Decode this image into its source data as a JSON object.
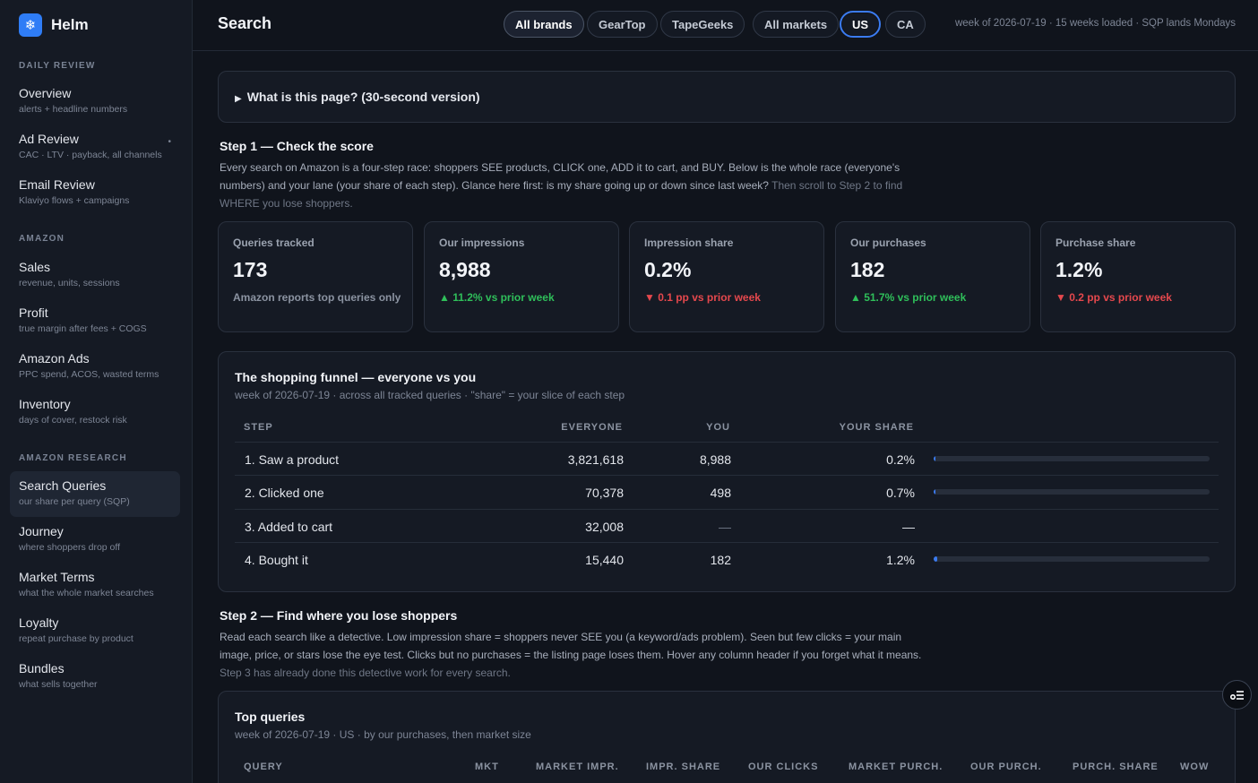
{
  "brand": {
    "name": "Helm",
    "logo_icon": "snowflake-icon"
  },
  "sidebar": {
    "sections": [
      {
        "label": "Daily Review",
        "items": [
          {
            "title": "Overview",
            "sub": "alerts + headline numbers"
          },
          {
            "title": "Ad Review",
            "sub": "CAC · LTV · payback, all channels"
          },
          {
            "title": "Email Review",
            "sub": "Klaviyo flows + campaigns"
          }
        ]
      },
      {
        "label": "Amazon",
        "items": [
          {
            "title": "Sales",
            "sub": "revenue, units, sessions"
          },
          {
            "title": "Profit",
            "sub": "true margin after fees + COGS"
          },
          {
            "title": "Amazon Ads",
            "sub": "PPC spend, ACOS, wasted terms"
          },
          {
            "title": "Inventory",
            "sub": "days of cover, restock risk"
          }
        ]
      },
      {
        "label": "Amazon Research",
        "items": [
          {
            "title": "Search Queries",
            "sub": "our share per query (SQP)"
          },
          {
            "title": "Journey",
            "sub": "where shoppers drop off"
          },
          {
            "title": "Market Terms",
            "sub": "what the whole market searches"
          },
          {
            "title": "Loyalty",
            "sub": "repeat purchase by product"
          },
          {
            "title": "Bundles",
            "sub": "what sells together"
          }
        ]
      }
    ],
    "ad_review_marker": "•"
  },
  "header": {
    "title": "Search",
    "filters": [
      "All brands",
      "GearTop",
      "TapeGeeks",
      "All markets",
      "US",
      "CA"
    ],
    "meta": "week of 2026-07-19 · 15 weeks loaded · SQP lands Mondays"
  },
  "explain": {
    "label": "What is this page? (30-second version)",
    "toggle_glyph": "▶"
  },
  "step1": {
    "title": "Step 1 — Check the score",
    "desc": "Every search on Amazon is a four-step race: shoppers SEE products, CLICK one, ADD it to cart, and BUY. Below is the whole race (everyone's numbers) and your lane (your share of each step). Glance here first: is my share going up or down since last week?",
    "desc_muted": "Then scroll to Step 2 to find WHERE you lose shoppers."
  },
  "kpis": [
    {
      "label": "Queries tracked",
      "value": "173",
      "delta": "Amazon reports top queries only",
      "tone": "note"
    },
    {
      "label": "Our impressions",
      "value": "8,988",
      "delta": "▲ 11.2% vs prior week",
      "tone": "up"
    },
    {
      "label": "Impression share",
      "value": "0.2%",
      "delta": "▼ 0.1 pp vs prior week",
      "tone": "down"
    },
    {
      "label": "Our purchases",
      "value": "182",
      "delta": "▲ 51.7% vs prior week",
      "tone": "up"
    },
    {
      "label": "Purchase share",
      "value": "1.2%",
      "delta": "▼ 0.2 pp vs prior week",
      "tone": "down"
    }
  ],
  "funnel": {
    "title": "The shopping funnel — everyone vs you",
    "subtitle": "week of 2026-07-19 · across all tracked queries · \"share\" = your slice of each step",
    "columns": [
      "Step",
      "Everyone",
      "You",
      "Your share"
    ],
    "rows": [
      {
        "step": "1. Saw a product",
        "everyone": "3,821,618",
        "you": "8,988",
        "share": "0.2%",
        "share_value": 0.2
      },
      {
        "step": "2. Clicked one",
        "everyone": "70,378",
        "you": "498",
        "share": "0.7%",
        "share_value": 0.7
      },
      {
        "step": "3. Added to cart",
        "everyone": "32,008",
        "you": "—",
        "share": "—",
        "share_value": null
      },
      {
        "step": "4. Bought it",
        "everyone": "15,440",
        "you": "182",
        "share": "1.2%",
        "share_value": 1.2
      }
    ]
  },
  "step2": {
    "title": "Step 2 — Find where you lose shoppers",
    "desc": "Read each search like a detective. Low impression share = shoppers never SEE you (a keyword/ads problem). Seen but few clicks = your main image, price, or stars lose the eye test. Clicks but no purchases = the listing page loses them. Hover any column header if you forget what it means.",
    "desc_muted": "Step 3 has already done this detective work for every search."
  },
  "queries": {
    "title": "Top queries",
    "subtitle": "week of 2026-07-19 · US · by our purchases, then market size",
    "columns": [
      "Query",
      "Mkt",
      "Market impr.",
      "Impr. share",
      "Our clicks",
      "Market purch.",
      "Our purch.",
      "Purch. share",
      "WoW"
    ]
  },
  "colors": {
    "accent": "#3b7bf0",
    "up": "#2fbf5a",
    "down": "#e5484d"
  }
}
